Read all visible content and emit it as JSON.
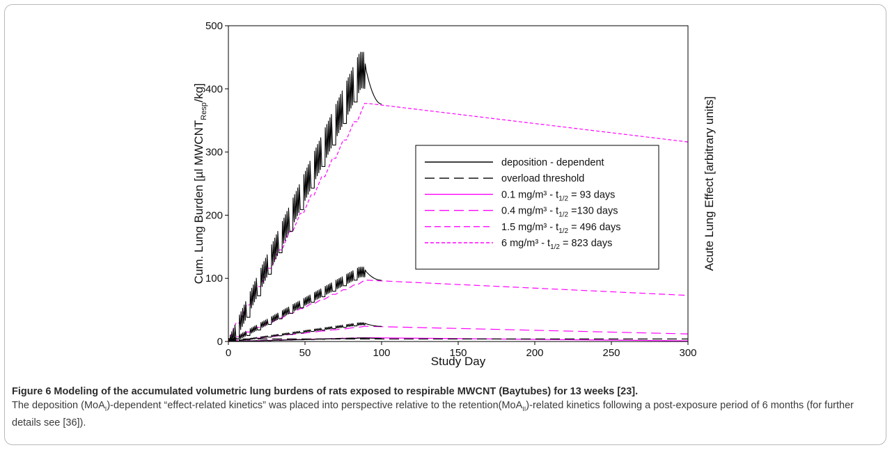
{
  "chart_data": {
    "type": "line",
    "xlabel": "Study Day",
    "ylabel_parts": [
      "Cum. Lung Burden [",
      "µl MWCNT",
      "Resp",
      "/kg]"
    ],
    "ylabel_right": "Acute Lung Effect [arbitrary units]",
    "xlim": [
      0,
      300
    ],
    "ylim": [
      0,
      500
    ],
    "x_ticks": [
      "0",
      "50",
      "100",
      "150",
      "200",
      "250",
      "300"
    ],
    "y_ticks": [
      "0",
      "100",
      "200",
      "300",
      "400",
      "500"
    ],
    "grid": false,
    "legend_position": "center-right",
    "colors": {
      "deposition": "#000000",
      "retention": "#ff00ff"
    },
    "legend": [
      {
        "text": "deposition - dependent",
        "color": "#000000",
        "dash": "solid"
      },
      {
        "text": "overload threshold",
        "color": "#000000",
        "dash": "long-dash"
      },
      {
        "text_main": "0.1 mg/m³ - t",
        "sub": "1/2",
        "text_end": " = 93 days",
        "color": "#ff00ff",
        "dash": "solid"
      },
      {
        "text_main": "0.4 mg/m³ - t",
        "sub": "1/2",
        "text_end": " =130 days",
        "color": "#ff00ff",
        "dash": "long-dash"
      },
      {
        "text_main": "1.5 mg/m³ - t",
        "sub": "1/2",
        "text_end": " = 496 days",
        "color": "#ff00ff",
        "dash": "medium-dash"
      },
      {
        "text_main": "6 mg/m³ - t",
        "sub": "1/2",
        "text_end": " = 823 days",
        "color": "#ff00ff",
        "dash": "short-dash"
      }
    ],
    "series": [
      {
        "name": "deposition - dependent",
        "concentration": "6 mg/m³",
        "type": "deposition",
        "peak_day": 89,
        "peak": 458,
        "trough_at_peak": 400,
        "end_day": 100,
        "end_value": 376
      },
      {
        "name": "deposition - dependent",
        "concentration": "1.5 mg/m³",
        "type": "deposition",
        "peak_day": 89,
        "peak": 118,
        "trough_at_peak": 102,
        "end_day": 100,
        "end_value": 97
      },
      {
        "name": "deposition - dependent",
        "concentration": "0.4 mg/m³",
        "type": "deposition",
        "peak_day": 89,
        "peak": 30,
        "trough_at_peak": 26,
        "end_day": 100,
        "end_value": 24
      },
      {
        "name": "deposition - dependent",
        "concentration": "0.1 mg/m³",
        "type": "deposition",
        "peak_day": 89,
        "peak": 6,
        "trough_at_peak": 5,
        "end_day": 100,
        "end_value": 5
      },
      {
        "name": "6 mg/m³ - t1/2 = 823 days",
        "type": "retention",
        "x": [
          0,
          91,
          300
        ],
        "y": [
          0,
          377,
          316
        ]
      },
      {
        "name": "1.5 mg/m³ - t1/2 = 496 days",
        "type": "retention",
        "x": [
          0,
          91,
          300
        ],
        "y": [
          0,
          97,
          73
        ]
      },
      {
        "name": "0.4 mg/m³ - t1/2 =130 days",
        "type": "retention",
        "x": [
          0,
          91,
          300
        ],
        "y": [
          0,
          24,
          12
        ]
      },
      {
        "name": "0.1 mg/m³ - t1/2 = 93 days",
        "type": "retention",
        "x": [
          0,
          91,
          300
        ],
        "y": [
          0,
          6,
          1
        ]
      },
      {
        "name": "overload threshold",
        "type": "threshold",
        "x": [
          0,
          300
        ],
        "y": [
          4,
          4
        ]
      }
    ]
  },
  "caption": {
    "title": "Figure 6 Modeling of the accumulated volumetric lung burdens of rats exposed to respirable MWCNT (Baytubes) for 13 weeks [23].",
    "body_a": "The deposition (MoA",
    "sub_a": "I",
    "body_b": ")-dependent “effect-related kinetics” was placed into perspective relative to the retention(MoA",
    "sub_b": "II",
    "body_c": ")-related kinetics following a post-exposure period of 6 months (for further details see [36])."
  }
}
